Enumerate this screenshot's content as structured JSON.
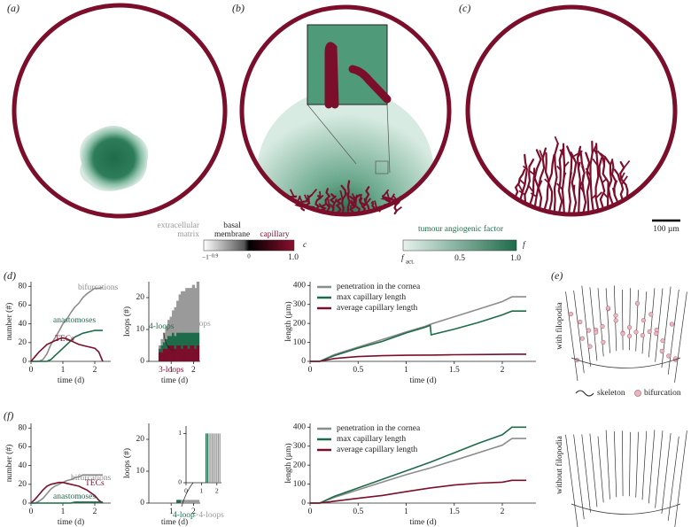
{
  "panel_labels": [
    "(a)",
    "(b)",
    "(c)",
    "(d)",
    "(e)",
    "(f)"
  ],
  "colorbar_c": {
    "labels": [
      "extracellular",
      "matrix",
      "basal",
      "membrane",
      "capillary"
    ],
    "symbol": "c",
    "ticks": [
      "−1",
      "−0.9",
      "0",
      "1.0"
    ]
  },
  "colorbar_f": {
    "label": "tumour angiogenic factor",
    "symbol": "f",
    "ticks": [
      "0.5",
      "1.0"
    ],
    "start": {
      "symbol": "f",
      "subscript": "act."
    }
  },
  "scale_bar": "100 µm",
  "panel_e": {
    "top": "with filopodia",
    "bottom": "without filopodia",
    "legend": [
      "skeleton",
      "bifurcation"
    ]
  },
  "chart_data": [
    {
      "type": "line",
      "xlabel": "time (d)",
      "ylabel": "number (#)",
      "xlim": [
        0,
        2.5
      ],
      "ylim": [
        0,
        85
      ],
      "xticks": [
        0,
        1,
        2
      ],
      "yticks": [
        0,
        20,
        40,
        60,
        80
      ],
      "legend": "inline",
      "x": [
        0,
        0.125,
        0.25,
        0.375,
        0.5,
        0.625,
        0.75,
        0.875,
        1,
        1.125,
        1.25,
        1.375,
        1.5,
        1.625,
        1.75,
        1.875,
        2,
        2.125,
        2.25
      ],
      "series": [
        {
          "name": "bifurcations",
          "color": "#8c8c8c",
          "values": [
            0,
            0,
            0,
            2,
            8,
            18,
            25,
            32,
            40,
            45,
            52,
            58,
            62,
            68,
            72,
            75,
            78,
            78,
            79
          ]
        },
        {
          "name": "anastomoses",
          "color": "#1e6b4a",
          "values": [
            0,
            0,
            0,
            0,
            0,
            2,
            6,
            10,
            14,
            18,
            22,
            26,
            28,
            30,
            31,
            32,
            33,
            33,
            33
          ]
        },
        {
          "name": "TECs",
          "color": "#7b0f2b",
          "values": [
            0,
            5,
            10,
            14,
            18,
            20,
            22,
            24,
            25,
            24,
            22,
            20,
            18,
            17,
            16,
            15,
            14,
            10,
            0
          ]
        }
      ]
    },
    {
      "type": "bar",
      "xlabel": "time (d)",
      "ylabel": "loops (#)",
      "xlim": [
        0,
        2.3
      ],
      "ylim": [
        0,
        25
      ],
      "xticks": [
        1,
        2
      ],
      "yticks": [
        0,
        10,
        20
      ],
      "legend": "inline",
      "x": [
        0.5,
        0.6,
        0.7,
        0.8,
        0.9,
        1.0,
        1.1,
        1.2,
        1.3,
        1.4,
        1.5,
        1.6,
        1.7,
        1.8,
        1.9,
        2.0,
        2.1,
        2.2
      ],
      "series": [
        {
          "name": "3-loops",
          "color": "#7b0f2b",
          "values": [
            3,
            3,
            4,
            4,
            5,
            5,
            5,
            4,
            5,
            5,
            4,
            5,
            5,
            4,
            5,
            5,
            4,
            5
          ]
        },
        {
          "name": "4-loops",
          "color": "#1e6b4a",
          "values": [
            1,
            2,
            2,
            3,
            3,
            3,
            4,
            4,
            4,
            4,
            5,
            4,
            4,
            5,
            4,
            4,
            5,
            4
          ]
        },
        {
          "name": ">4-loops",
          "color": "#9a9a9a",
          "values": [
            1,
            2,
            3,
            4,
            5,
            6,
            7,
            9,
            10,
            12,
            13,
            13,
            14,
            14,
            14,
            15,
            14,
            16
          ]
        }
      ]
    },
    {
      "type": "line",
      "xlabel": "time (d)",
      "ylabel": "length (µm)",
      "xlim": [
        0,
        2.35
      ],
      "ylim": [
        0,
        420
      ],
      "xticks": [
        0,
        0.5,
        1,
        1.5,
        2
      ],
      "yticks": [
        0,
        100,
        200,
        300,
        400
      ],
      "legend": "upper left",
      "x": [
        0,
        0.1,
        0.25,
        0.5,
        0.75,
        1.0,
        1.2,
        1.25,
        1.26,
        1.5,
        1.75,
        2.0,
        2.1,
        2.25
      ],
      "series": [
        {
          "name": "penetration in the cornea",
          "color": "#8c8c8c",
          "values": [
            0,
            0,
            35,
            75,
            115,
            155,
            185,
            195,
            197,
            235,
            275,
            315,
            340,
            340
          ]
        },
        {
          "name": "max capillary length",
          "color": "#1e6b4a",
          "values": [
            0,
            0,
            30,
            70,
            105,
            150,
            180,
            190,
            140,
            170,
            205,
            245,
            265,
            265
          ]
        },
        {
          "name": "average capillary length",
          "color": "#7b0f2b",
          "values": [
            0,
            0,
            15,
            25,
            30,
            32,
            33,
            33,
            33,
            35,
            36,
            37,
            38,
            38
          ]
        }
      ]
    },
    {
      "type": "line",
      "xlabel": "time (d)",
      "ylabel": "number (#)",
      "xlim": [
        0,
        2.5
      ],
      "ylim": [
        0,
        85
      ],
      "xticks": [
        0,
        1,
        2
      ],
      "yticks": [
        0,
        20,
        40,
        60,
        80
      ],
      "legend": "inline",
      "x": [
        0,
        0.125,
        0.25,
        0.375,
        0.5,
        0.625,
        0.75,
        0.875,
        1,
        1.125,
        1.25,
        1.375,
        1.5,
        1.625,
        1.75,
        1.875,
        2,
        2.125,
        2.25
      ],
      "series": [
        {
          "name": "bifurcations",
          "color": "#8c8c8c",
          "values": [
            0,
            0,
            2,
            5,
            10,
            15,
            18,
            20,
            22,
            24,
            25,
            27,
            28,
            30,
            30,
            30,
            30,
            30,
            30
          ]
        },
        {
          "name": "TECs",
          "color": "#7b0f2b",
          "values": [
            0,
            4,
            9,
            14,
            18,
            20,
            21,
            22,
            22,
            21,
            20,
            19,
            18,
            16,
            14,
            11,
            8,
            3,
            0
          ]
        },
        {
          "name": "anastomoses",
          "color": "#1e6b4a",
          "values": [
            0,
            0,
            0,
            0,
            0,
            0,
            0,
            0,
            0,
            0,
            0,
            1,
            1,
            1,
            1,
            1,
            1,
            1,
            1
          ]
        }
      ]
    },
    {
      "type": "bar",
      "xlabel": "time (d)",
      "ylabel": "loops (#)",
      "xlim": [
        0,
        2.3
      ],
      "ylim": [
        0,
        25
      ],
      "xticks": [
        1,
        2
      ],
      "yticks": [
        0,
        10,
        20
      ],
      "legend": "inline",
      "x": [
        1.3,
        1.4,
        1.5,
        1.6,
        1.7,
        1.8,
        1.9,
        2.0,
        2.1,
        2.2
      ],
      "series": [
        {
          "name": "4-loop",
          "color": "#1e6b4a",
          "values": [
            1,
            1,
            0,
            0,
            0,
            0,
            0,
            0,
            0,
            0
          ]
        },
        {
          "name": ">4-loops",
          "color": "#9a9a9a",
          "values": [
            0,
            0,
            1,
            1,
            1,
            1,
            1,
            1,
            1,
            1
          ]
        }
      ]
    },
    {
      "type": "bar",
      "xlim": [
        0,
        2.3
      ],
      "ylim": [
        0,
        1.15
      ],
      "xticks": [
        0,
        1,
        2
      ],
      "yticks": [
        0,
        1
      ],
      "x": [
        1.3,
        1.4,
        1.5,
        1.6,
        1.7,
        1.8,
        1.9,
        2.0,
        2.1,
        2.2
      ],
      "series": [
        {
          "color": "#1e6b4a",
          "values": [
            1,
            1,
            0,
            0,
            0,
            0,
            0,
            0,
            0,
            0
          ]
        },
        {
          "color": "#9a9a9a",
          "values": [
            0,
            0,
            1,
            1,
            1,
            1,
            1,
            1,
            1,
            1
          ]
        }
      ]
    },
    {
      "type": "line",
      "xlabel": "time (d)",
      "ylabel": "length (µm)",
      "xlim": [
        0,
        2.35
      ],
      "ylim": [
        0,
        420
      ],
      "xticks": [
        0,
        0.5,
        1,
        1.5,
        2
      ],
      "yticks": [
        0,
        100,
        200,
        300,
        400
      ],
      "legend": "upper left",
      "x": [
        0,
        0.1,
        0.25,
        0.5,
        0.75,
        1.0,
        1.25,
        1.5,
        1.75,
        2.0,
        2.1,
        2.25
      ],
      "series": [
        {
          "name": "penetration in the cornea",
          "color": "#8c8c8c",
          "values": [
            0,
            0,
            30,
            70,
            110,
            150,
            185,
            225,
            265,
            305,
            340,
            340
          ]
        },
        {
          "name": "max capillary length",
          "color": "#1e6b4a",
          "values": [
            0,
            0,
            35,
            80,
            125,
            170,
            215,
            265,
            315,
            360,
            400,
            400
          ]
        },
        {
          "name": "average capillary length",
          "color": "#7b0f2b",
          "values": [
            0,
            0,
            10,
            25,
            40,
            60,
            80,
            95,
            105,
            110,
            120,
            120
          ]
        }
      ]
    }
  ]
}
